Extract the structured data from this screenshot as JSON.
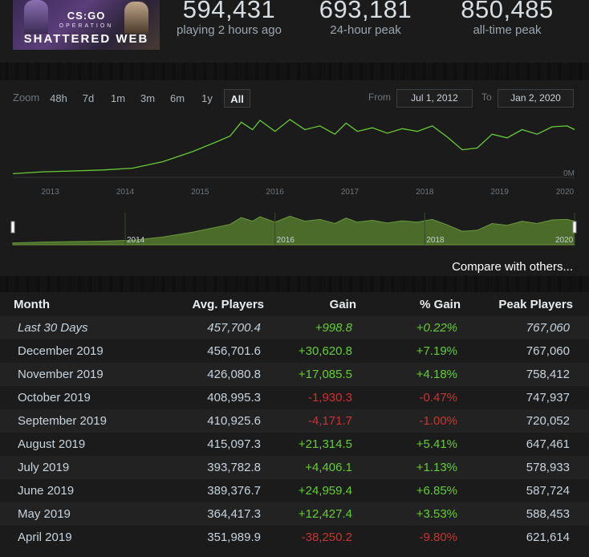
{
  "header": {
    "banner": {
      "line1": "CS:GO",
      "line2": "OPERATION",
      "line3": "SHATTERED WEB"
    },
    "stats": [
      {
        "value": "594,431",
        "label": "playing 2 hours ago"
      },
      {
        "value": "693,181",
        "label": "24-hour peak"
      },
      {
        "value": "850,485",
        "label": "all-time peak"
      }
    ]
  },
  "chart_controls": {
    "zoom_label": "Zoom",
    "zoom_options": [
      "48h",
      "7d",
      "1m",
      "3m",
      "6m",
      "1y",
      "All"
    ],
    "active_zoom": "All",
    "from_label": "From",
    "from_value": "Jul 1, 2012",
    "to_label": "To",
    "to_value": "Jan 2, 2020"
  },
  "chart_data": {
    "type": "line",
    "x_tick_labels": [
      "2013",
      "2014",
      "2015",
      "2016",
      "2017",
      "2018",
      "2019",
      "2020"
    ],
    "y_tick_label": "0M",
    "line_color": "#66cc33",
    "navigator_tick_labels": [
      "2014",
      "2016",
      "2018",
      "2020"
    ],
    "x": [
      2012.5,
      2012.9,
      2013.3,
      2013.7,
      2014.1,
      2014.5,
      2014.9,
      2015.2,
      2015.4,
      2015.55,
      2015.7,
      2015.8,
      2016.0,
      2016.2,
      2016.4,
      2016.6,
      2016.8,
      2016.95,
      2017.1,
      2017.3,
      2017.5,
      2017.7,
      2017.9,
      2018.1,
      2018.3,
      2018.5,
      2018.7,
      2018.9,
      2019.1,
      2019.3,
      2019.5,
      2019.7,
      2019.9,
      2020.0
    ],
    "y": [
      0.04,
      0.06,
      0.07,
      0.08,
      0.1,
      0.17,
      0.28,
      0.38,
      0.45,
      0.6,
      0.52,
      0.62,
      0.5,
      0.63,
      0.52,
      0.56,
      0.47,
      0.59,
      0.5,
      0.54,
      0.48,
      0.53,
      0.5,
      0.56,
      0.44,
      0.3,
      0.32,
      0.47,
      0.43,
      0.52,
      0.47,
      0.55,
      0.56,
      0.52
    ]
  },
  "compare_link": "Compare with others...",
  "table": {
    "headers": [
      "Month",
      "Avg. Players",
      "Gain",
      "% Gain",
      "Peak Players"
    ],
    "rows": [
      {
        "month": "Last 30 Days",
        "avg": "457,700.4",
        "gain": "+998.8",
        "pct": "+0.22%",
        "peak": "767,060",
        "trend": "pos"
      },
      {
        "month": "December 2019",
        "avg": "456,701.6",
        "gain": "+30,620.8",
        "pct": "+7.19%",
        "peak": "767,060",
        "trend": "pos"
      },
      {
        "month": "November 2019",
        "avg": "426,080.8",
        "gain": "+17,085.5",
        "pct": "+4.18%",
        "peak": "758,412",
        "trend": "pos"
      },
      {
        "month": "October 2019",
        "avg": "408,995.3",
        "gain": "-1,930.3",
        "pct": "-0.47%",
        "peak": "747,937",
        "trend": "neg"
      },
      {
        "month": "September 2019",
        "avg": "410,925.6",
        "gain": "-4,171.7",
        "pct": "-1.00%",
        "peak": "720,052",
        "trend": "neg"
      },
      {
        "month": "August 2019",
        "avg": "415,097.3",
        "gain": "+21,314.5",
        "pct": "+5.41%",
        "peak": "647,461",
        "trend": "pos"
      },
      {
        "month": "July 2019",
        "avg": "393,782.8",
        "gain": "+4,406.1",
        "pct": "+1.13%",
        "peak": "578,933",
        "trend": "pos"
      },
      {
        "month": "June 2019",
        "avg": "389,376.7",
        "gain": "+24,959.4",
        "pct": "+6.85%",
        "peak": "587,724",
        "trend": "pos"
      },
      {
        "month": "May 2019",
        "avg": "364,417.3",
        "gain": "+12,427.4",
        "pct": "+3.53%",
        "peak": "588,453",
        "trend": "pos"
      },
      {
        "month": "April 2019",
        "avg": "351,989.9",
        "gain": "-38,250.2",
        "pct": "-9.80%",
        "peak": "621,614",
        "trend": "neg"
      }
    ]
  }
}
